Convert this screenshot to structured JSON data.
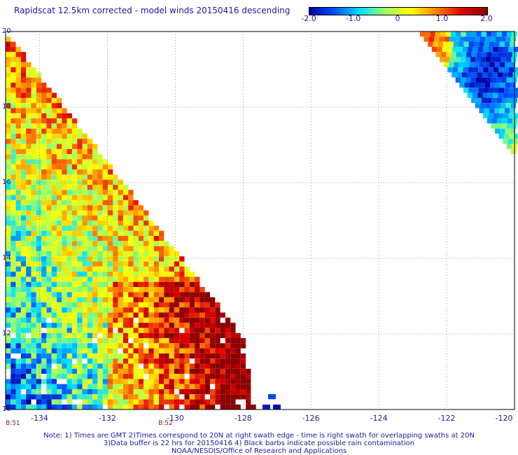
{
  "title": "Rapidscat 12.5km corrected - model winds 20150416 descending",
  "colorbar": {
    "ticks": [
      "-2.0",
      "-1.0",
      "0",
      "1.0",
      "2.0"
    ],
    "values": [
      -2,
      -1,
      0,
      1,
      2
    ],
    "colors": [
      "#0000a0",
      "#0050ff",
      "#00e0ff",
      "#a0ff60",
      "#ffff00",
      "#ff8000",
      "#e00000",
      "#8b0000"
    ]
  },
  "chart_data": {
    "type": "heatmap",
    "x_ticks": [
      "-134",
      "-132",
      "-130",
      "-128",
      "-126",
      "-124",
      "-122",
      "-120"
    ],
    "x_values": [
      -134,
      -132,
      -130,
      -128,
      -126,
      -124,
      -122,
      -120
    ],
    "y_ticks": [
      "20",
      "18",
      "16",
      "14",
      "12",
      "10"
    ],
    "y_values": [
      20,
      18,
      16,
      14,
      12,
      10
    ],
    "xlim": [
      -135,
      -120
    ],
    "ylim": [
      10,
      20
    ],
    "grid": true,
    "value_range": [
      -2,
      2
    ],
    "swath_labels": [
      "B:51",
      "B:52"
    ],
    "swath_lons": [
      -135,
      -130.5
    ]
  },
  "notes": {
    "line1": "Note: 1) Times are GMT 2)Times correspond to 20N at right swath edge - time is right swath for overlapping swaths at 20N",
    "line2": "3)Data buffer is 22 hrs for 20150416 4) Black barbs indicate possible rain contamination",
    "line3": "NOAA/NESDIS/Office of Research and Applications"
  }
}
